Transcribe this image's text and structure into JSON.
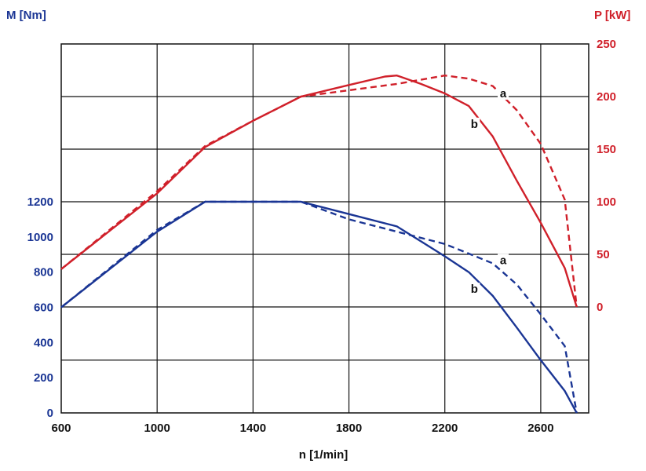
{
  "chart_data": {
    "type": "line",
    "left_axis": {
      "label": "M [Nm]",
      "ticks": [
        0,
        200,
        400,
        600,
        800,
        1000,
        1200
      ],
      "range": [
        0,
        1200
      ],
      "color": "#1a3594"
    },
    "right_axis": {
      "label": "P [kW]",
      "ticks": [
        0,
        50,
        100,
        150,
        200,
        250
      ],
      "range": [
        0,
        250
      ],
      "color": "#d0202a"
    },
    "x_axis": {
      "label": "n [1/min]",
      "ticks": [
        600,
        1000,
        1400,
        1800,
        2200,
        2600
      ],
      "range": [
        600,
        2800
      ]
    },
    "grid": true,
    "series": [
      {
        "name": "a",
        "quantity": "P",
        "axis": "right",
        "style": "dashed",
        "color": "#d0202a",
        "points": [
          [
            600,
            36
          ],
          [
            1000,
            110
          ],
          [
            1200,
            153
          ],
          [
            1400,
            177
          ],
          [
            1600,
            200
          ],
          [
            1800,
            206
          ],
          [
            2000,
            212
          ],
          [
            2200,
            220
          ],
          [
            2300,
            217
          ],
          [
            2400,
            210
          ],
          [
            2500,
            187
          ],
          [
            2600,
            155
          ],
          [
            2700,
            102
          ],
          [
            2750,
            0
          ]
        ]
      },
      {
        "name": "b",
        "quantity": "P",
        "axis": "right",
        "style": "solid",
        "color": "#d0202a",
        "points": [
          [
            600,
            36
          ],
          [
            1000,
            108
          ],
          [
            1200,
            152
          ],
          [
            1400,
            177
          ],
          [
            1600,
            200
          ],
          [
            1800,
            211
          ],
          [
            1950,
            219
          ],
          [
            2000,
            220
          ],
          [
            2100,
            212
          ],
          [
            2200,
            203
          ],
          [
            2300,
            191
          ],
          [
            2400,
            162
          ],
          [
            2500,
            120
          ],
          [
            2600,
            80
          ],
          [
            2700,
            37
          ],
          [
            2750,
            0
          ]
        ]
      },
      {
        "name": "a",
        "quantity": "M",
        "axis": "left",
        "style": "dashed",
        "color": "#1a3594",
        "points": [
          [
            600,
            600
          ],
          [
            1000,
            1040
          ],
          [
            1200,
            1200
          ],
          [
            1600,
            1200
          ],
          [
            1800,
            1100
          ],
          [
            2000,
            1030
          ],
          [
            2200,
            960
          ],
          [
            2300,
            905
          ],
          [
            2400,
            850
          ],
          [
            2500,
            730
          ],
          [
            2600,
            560
          ],
          [
            2700,
            380
          ],
          [
            2750,
            0
          ]
        ]
      },
      {
        "name": "b",
        "quantity": "M",
        "axis": "left",
        "style": "solid",
        "color": "#1a3594",
        "points": [
          [
            600,
            600
          ],
          [
            1000,
            1030
          ],
          [
            1200,
            1200
          ],
          [
            1600,
            1200
          ],
          [
            1800,
            1130
          ],
          [
            2000,
            1060
          ],
          [
            2100,
            975
          ],
          [
            2200,
            890
          ],
          [
            2300,
            800
          ],
          [
            2400,
            665
          ],
          [
            2500,
            485
          ],
          [
            2600,
            300
          ],
          [
            2700,
            125
          ],
          [
            2750,
            0
          ]
        ]
      }
    ],
    "annotations": [
      {
        "text": "a",
        "x": 2440,
        "axis": "right",
        "y": 200
      },
      {
        "text": "b",
        "x": 2320,
        "axis": "right",
        "y": 171
      },
      {
        "text": "a",
        "x": 2440,
        "axis": "left",
        "y": 850
      },
      {
        "text": "b",
        "x": 2320,
        "axis": "left",
        "y": 686
      }
    ]
  }
}
